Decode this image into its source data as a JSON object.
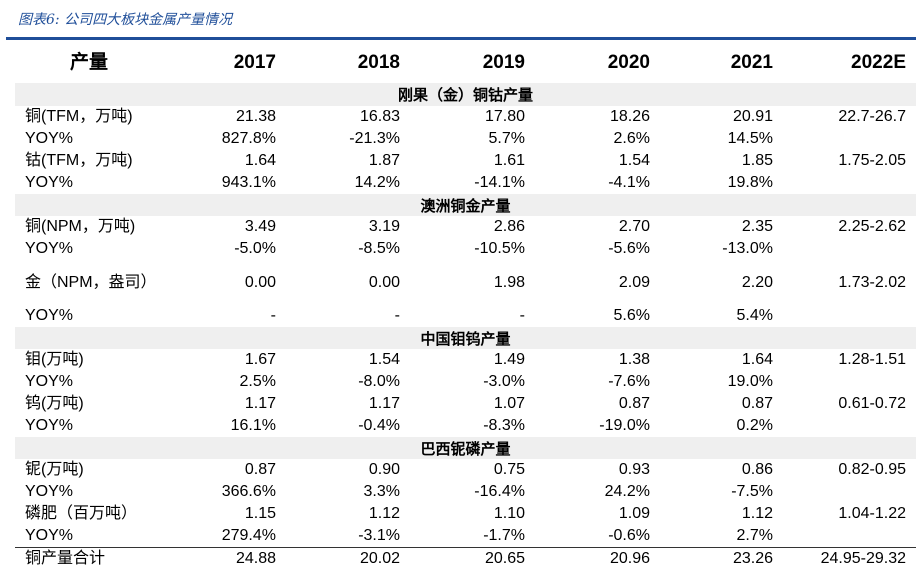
{
  "title": "图表6: 公司四大板块金属产量情况",
  "header": [
    "产量",
    "2017",
    "2018",
    "2019",
    "2020",
    "2021",
    "2022E"
  ],
  "rows": [
    {
      "section": "刚果（金）铜钴产量"
    },
    {
      "cells": [
        "铜(TFM，万吨)",
        "21.38",
        "16.83",
        "17.80",
        "18.26",
        "20.91",
        "22.7-26.7"
      ]
    },
    {
      "cells": [
        "YOY%",
        "827.8%",
        "-21.3%",
        "5.7%",
        "2.6%",
        "14.5%",
        ""
      ]
    },
    {
      "cells": [
        "钴(TFM，万吨)",
        "1.64",
        "1.87",
        "1.61",
        "1.54",
        "1.85",
        "1.75-2.05"
      ]
    },
    {
      "cells": [
        "YOY%",
        "943.1%",
        "14.2%",
        "-14.1%",
        "-4.1%",
        "19.8%",
        ""
      ]
    },
    {
      "section": "澳洲铜金产量"
    },
    {
      "cells": [
        "铜(NPM，万吨)",
        "3.49",
        "3.19",
        "2.86",
        "2.70",
        "2.35",
        "2.25-2.62"
      ]
    },
    {
      "cells": [
        "YOY%",
        "-5.0%",
        "-8.5%",
        "-10.5%",
        "-5.6%",
        "-13.0%",
        ""
      ]
    },
    {
      "cells": [
        "金（NPM，盎司）",
        "0.00",
        "0.00",
        "1.98",
        "2.09",
        "2.20",
        "1.73-2.02"
      ],
      "tall": true
    },
    {
      "cells": [
        "YOY%",
        "-",
        "-",
        "-",
        "5.6%",
        "5.4%",
        ""
      ]
    },
    {
      "section": "中国钼钨产量"
    },
    {
      "cells": [
        "钼(万吨)",
        "1.67",
        "1.54",
        "1.49",
        "1.38",
        "1.64",
        "1.28-1.51"
      ]
    },
    {
      "cells": [
        "YOY%",
        "2.5%",
        "-8.0%",
        "-3.0%",
        "-7.6%",
        "19.0%",
        ""
      ]
    },
    {
      "cells": [
        "钨(万吨)",
        "1.17",
        "1.17",
        "1.07",
        "0.87",
        "0.87",
        "0.61-0.72"
      ]
    },
    {
      "cells": [
        "YOY%",
        "16.1%",
        "-0.4%",
        "-8.3%",
        "-19.0%",
        "0.2%",
        ""
      ]
    },
    {
      "section": "巴西铌磷产量"
    },
    {
      "cells": [
        "铌(万吨)",
        "0.87",
        "0.90",
        "0.75",
        "0.93",
        "0.86",
        "0.82-0.95"
      ]
    },
    {
      "cells": [
        "YOY%",
        "366.6%",
        "3.3%",
        "-16.4%",
        "24.2%",
        "-7.5%",
        ""
      ]
    },
    {
      "cells": [
        "磷肥（百万吨）",
        "1.15",
        "1.12",
        "1.10",
        "1.09",
        "1.12",
        "1.04-1.22"
      ]
    },
    {
      "cells": [
        "YOY%",
        "279.4%",
        "-3.1%",
        "-1.7%",
        "-0.6%",
        "2.7%",
        ""
      ]
    },
    {
      "cells": [
        "铜产量合计",
        "24.88",
        "20.02",
        "20.65",
        "20.96",
        "23.26",
        "24.95-29.32"
      ],
      "total": true
    }
  ]
}
